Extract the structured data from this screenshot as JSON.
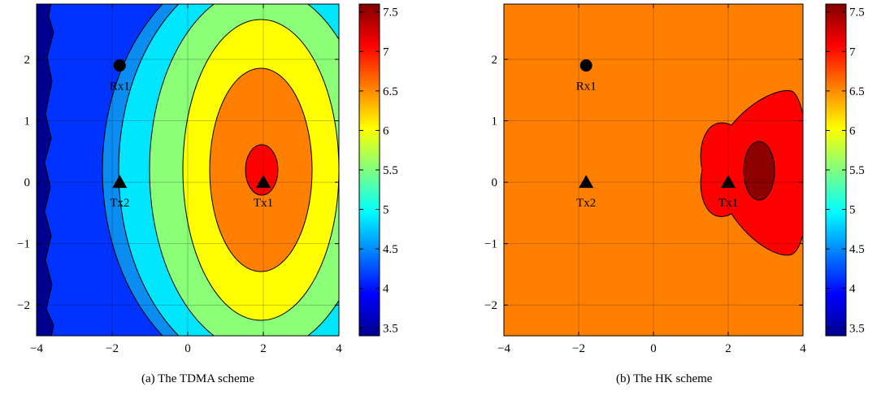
{
  "chart_data": [
    {
      "type": "contour",
      "caption": "(a) The TDMA scheme",
      "xlim": [
        -4,
        4
      ],
      "ylim": [
        -2.5,
        2.9
      ],
      "x_ticks": [
        -4,
        -2,
        0,
        2,
        4
      ],
      "y_ticks": [
        -2,
        -1,
        0,
        1,
        2
      ],
      "x_tick_labels": [
        "−4",
        "−2",
        "0",
        "2",
        "4"
      ],
      "y_tick_labels": [
        "−2",
        "−1",
        "0",
        "1",
        "2"
      ],
      "grid": true,
      "colorbar": {
        "range": [
          3.4,
          7.6
        ],
        "ticks": [
          3.5,
          4,
          4.5,
          5,
          5.5,
          6,
          6.5,
          7,
          7.5
        ],
        "tick_labels": [
          "3.5",
          "4",
          "4.5",
          "5",
          "5.5",
          "6",
          "6.5",
          "7",
          "7.5"
        ]
      },
      "contour_levels": [
        {
          "value": 3.5,
          "color": "#00008f"
        },
        {
          "value": 4.0,
          "color": "#0033ff"
        },
        {
          "value": 4.5,
          "color": "#0a8cf0"
        },
        {
          "value": 5.0,
          "color": "#00e6ff"
        },
        {
          "value": 5.5,
          "color": "#8cff78"
        },
        {
          "value": 6.0,
          "color": "#ffff00"
        },
        {
          "value": 6.5,
          "color": "#ff8000"
        },
        {
          "value": 7.0,
          "color": "#ff0000"
        }
      ],
      "points": [
        {
          "label": "Rx1",
          "x": -1.8,
          "y": 1.9,
          "marker": "circle"
        },
        {
          "label": "Tx2",
          "x": -1.8,
          "y": 0.0,
          "marker": "triangle"
        },
        {
          "label": "Tx1",
          "x": 2.0,
          "y": 0.0,
          "marker": "triangle"
        }
      ]
    },
    {
      "type": "contour",
      "caption": "(b) The HK scheme",
      "xlim": [
        -4,
        4
      ],
      "ylim": [
        -2.5,
        2.9
      ],
      "x_ticks": [
        -4,
        -2,
        0,
        2,
        4
      ],
      "y_ticks": [
        -2,
        -1,
        0,
        1,
        2
      ],
      "x_tick_labels": [
        "−4",
        "−2",
        "0",
        "2",
        "4"
      ],
      "y_tick_labels": [
        "−2",
        "−1",
        "0",
        "1",
        "2"
      ],
      "grid": true,
      "colorbar": {
        "range": [
          3.4,
          7.6
        ],
        "ticks": [
          3.5,
          4,
          4.5,
          5,
          5.5,
          6,
          6.5,
          7,
          7.5
        ],
        "tick_labels": [
          "3.5",
          "4",
          "4.5",
          "5",
          "5.5",
          "6",
          "6.5",
          "7",
          "7.5"
        ]
      },
      "contour_levels": [
        {
          "value": 6.5,
          "color": "#ff8000"
        },
        {
          "value": 7.0,
          "color": "#ff0000"
        },
        {
          "value": 7.5,
          "color": "#8c0000"
        }
      ],
      "points": [
        {
          "label": "Rx1",
          "x": -1.8,
          "y": 1.9,
          "marker": "circle"
        },
        {
          "label": "Tx2",
          "x": -1.8,
          "y": 0.0,
          "marker": "triangle"
        },
        {
          "label": "Tx1",
          "x": 2.0,
          "y": 0.0,
          "marker": "triangle"
        }
      ]
    }
  ]
}
